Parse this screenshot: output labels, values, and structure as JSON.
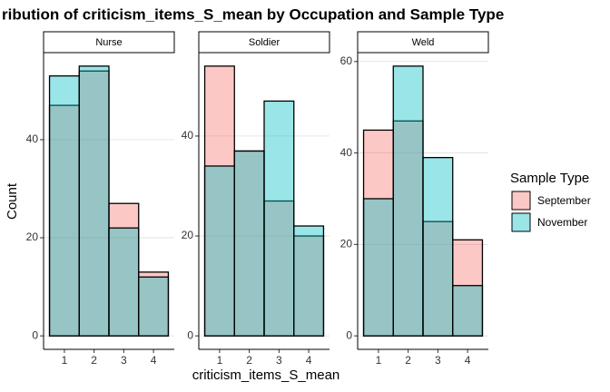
{
  "figure": {
    "title": "ribution of criticism_items_S_mean by Occupation and Sample Type",
    "x_label": "criticism_items_S_mean",
    "y_label": "Count",
    "legend_title": "Sample Type"
  },
  "chart_data": [
    {
      "type": "histogram",
      "title": "Nurse",
      "bins": [
        0.5,
        1.5,
        2.5,
        3.5,
        4.5
      ],
      "xlim": [
        0.3,
        4.7
      ],
      "xticks": [
        1,
        2,
        3,
        4
      ],
      "ylim": [
        -2.75,
        57.75
      ],
      "yticks": [
        0,
        20,
        40
      ],
      "grid": true,
      "series": [
        {
          "name": "September",
          "color": "#F8766D",
          "values": [
            47,
            54,
            27,
            13
          ]
        },
        {
          "name": "November",
          "color": "#00BFC4",
          "values": [
            53,
            55,
            22,
            12
          ]
        }
      ]
    },
    {
      "type": "histogram",
      "title": "Soldier",
      "bins": [
        0.5,
        1.5,
        2.5,
        3.5,
        4.5
      ],
      "xlim": [
        0.3,
        4.7
      ],
      "xticks": [
        1,
        2,
        3,
        4
      ],
      "ylim": [
        -2.7,
        56.7
      ],
      "yticks": [
        0,
        20,
        40
      ],
      "grid": true,
      "series": [
        {
          "name": "September",
          "color": "#F8766D",
          "values": [
            54,
            37,
            27,
            20
          ]
        },
        {
          "name": "November",
          "color": "#00BFC4",
          "values": [
            34,
            37,
            47,
            22
          ]
        }
      ]
    },
    {
      "type": "histogram",
      "title": "Weld",
      "bins": [
        0.5,
        1.5,
        2.5,
        3.5,
        4.5
      ],
      "xlim": [
        0.3,
        4.7
      ],
      "xticks": [
        1,
        2,
        3,
        4
      ],
      "ylim": [
        -2.95,
        61.95
      ],
      "yticks": [
        0,
        20,
        40,
        60
      ],
      "grid": true,
      "series": [
        {
          "name": "September",
          "color": "#F8766D",
          "values": [
            45,
            47,
            25,
            21
          ]
        },
        {
          "name": "November",
          "color": "#00BFC4",
          "values": [
            30,
            59,
            39,
            11
          ]
        }
      ]
    }
  ]
}
